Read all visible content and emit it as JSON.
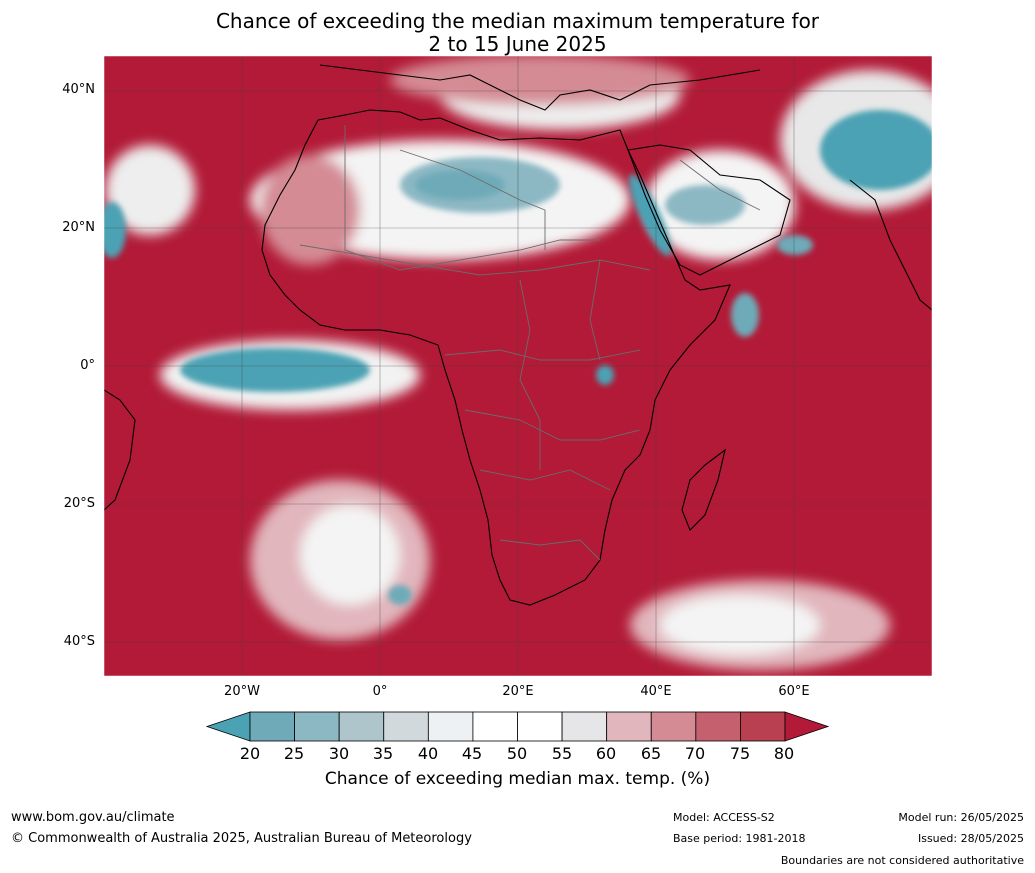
{
  "title_line1": "Chance of exceeding the median maximum temperature for",
  "title_line2": "2 to 15 June 2025",
  "lat_labels": [
    "40°N",
    "20°N",
    "0°",
    "20°S",
    "40°S"
  ],
  "lon_labels": [
    "20°W",
    "0°",
    "20°E",
    "40°E",
    "60°E"
  ],
  "colorbar": {
    "ticks": [
      "20",
      "25",
      "30",
      "35",
      "40",
      "45",
      "50",
      "55",
      "60",
      "65",
      "70",
      "75",
      "80"
    ],
    "colors": [
      "#4ba2b4",
      "#6eaab8",
      "#8cb8c4",
      "#aec5cb",
      "#d1d9dc",
      "#edf1f3",
      "#ffffff",
      "#ffffff",
      "#e6e6e8",
      "#e1b6bc",
      "#d48b94",
      "#c5606e",
      "#b84050",
      "#b21a37"
    ],
    "label": "Chance of exceeding median max. temp. (%)"
  },
  "palette": {
    "hot": "#b21a37",
    "hot_mid": "#c5606e",
    "neutral": "#f2f2f2",
    "cool": "#4ba2b4",
    "cool_light": "#9bc3cc",
    "ocean_lines": "#333333"
  },
  "footer": {
    "url": "www.bom.gov.au/climate",
    "copyright": "© Commonwealth of Australia 2025, Australian Bureau of Meteorology",
    "model": "Model: ACCESS-S2",
    "base_period": "Base period: 1981-2018",
    "model_run": "Model run: 26/05/2025",
    "issued": "Issued: 28/05/2025",
    "disclaimer": "Boundaries are not considered authoritative"
  }
}
